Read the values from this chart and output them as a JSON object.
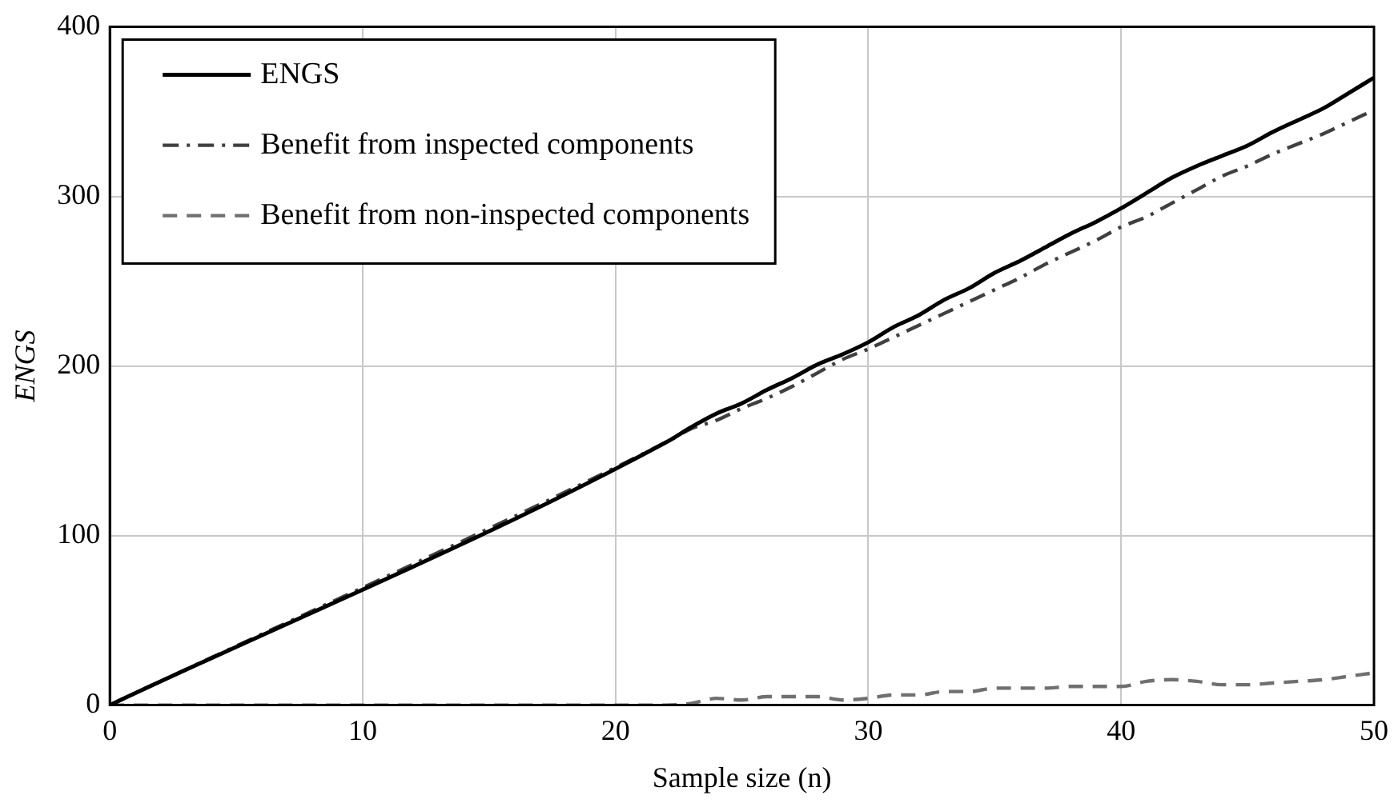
{
  "chart_data": {
    "type": "line",
    "xlabel": "Sample size (n)",
    "ylabel": "ENGS",
    "xlim": [
      0,
      50
    ],
    "ylim": [
      0,
      400
    ],
    "xticks": [
      0,
      10,
      20,
      30,
      40,
      50
    ],
    "yticks": [
      0,
      100,
      200,
      300,
      400
    ],
    "grid": true,
    "legend": "top left",
    "marker": "none",
    "x": [
      0,
      22,
      23,
      24,
      25,
      26,
      27,
      28,
      29,
      30,
      31,
      32,
      33,
      34,
      35,
      36,
      37,
      38,
      39,
      40,
      41,
      42,
      43,
      44,
      45,
      46,
      47,
      48,
      49,
      50
    ],
    "series": [
      {
        "name": "ENGS",
        "color": "#000000",
        "line_style": "solid",
        "values": [
          0,
          155,
          164,
          172,
          178,
          186,
          193,
          201,
          207,
          214,
          223,
          230,
          239,
          246,
          255,
          262,
          270,
          278,
          285,
          293,
          302,
          311,
          318,
          324,
          330,
          338,
          345,
          352,
          361,
          370
        ]
      },
      {
        "name": "Benefit from inspected components",
        "color": "#404040",
        "line_style": "dashdot",
        "values": [
          0,
          155,
          163,
          168,
          175,
          181,
          188,
          196,
          204,
          210,
          217,
          224,
          231,
          238,
          245,
          252,
          260,
          267,
          274,
          282,
          288,
          296,
          304,
          312,
          318,
          325,
          331,
          337,
          344,
          351
        ]
      },
      {
        "name": "Benefit from non-inspected components",
        "color": "#707070",
        "line_style": "dashed",
        "values": [
          0,
          0,
          1,
          4,
          3,
          5,
          5,
          5,
          3,
          4,
          6,
          6,
          8,
          8,
          10,
          10,
          10,
          11,
          11,
          11,
          14,
          15,
          14,
          12,
          12,
          13,
          14,
          15,
          17,
          19
        ]
      }
    ]
  }
}
